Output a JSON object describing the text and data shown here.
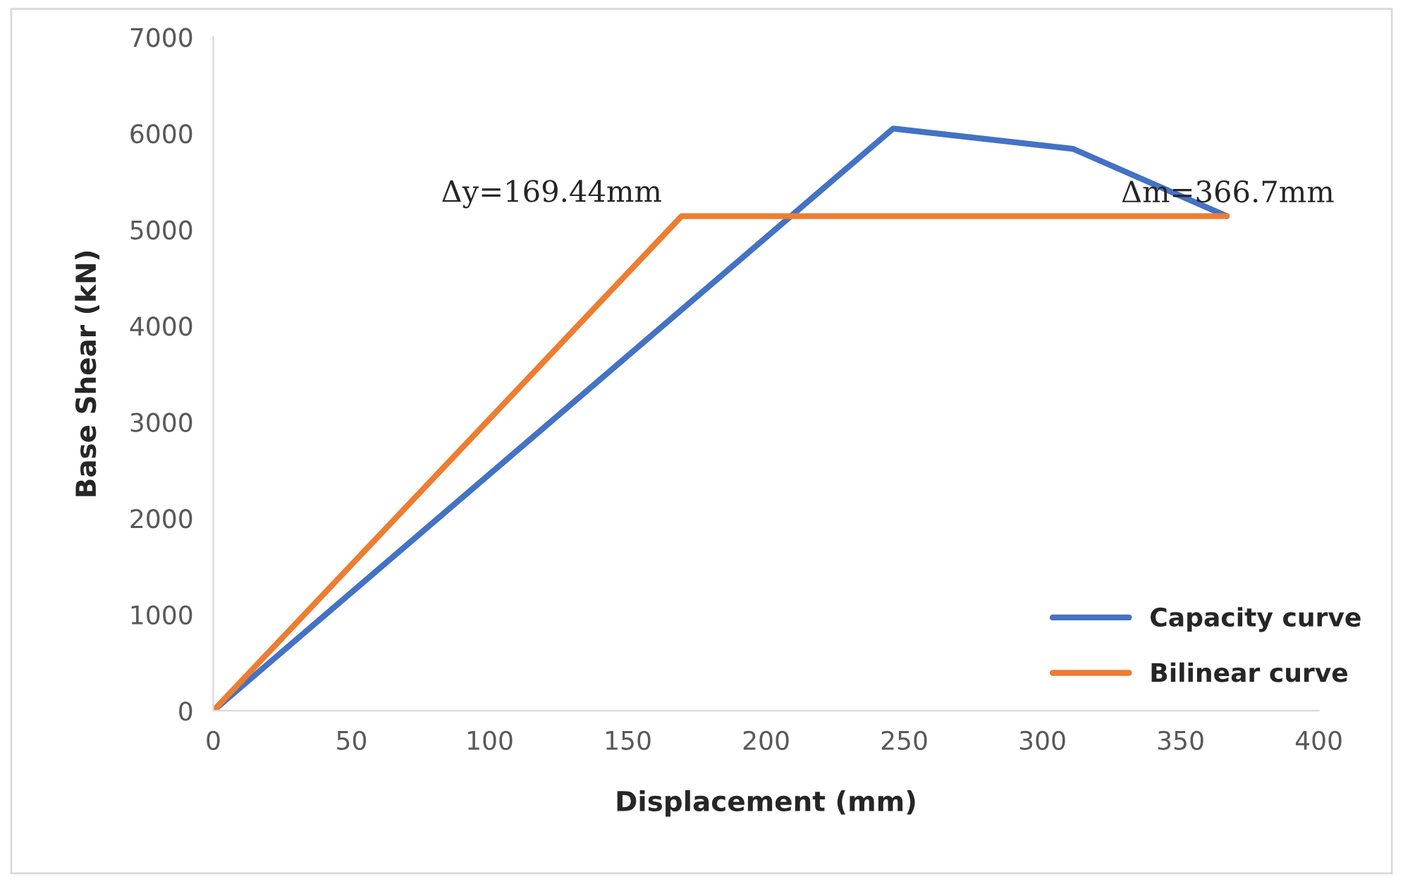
{
  "chart_data": {
    "type": "line",
    "xlabel": "Displacement (mm)",
    "ylabel": "Base Shear (kN)",
    "series": [
      {
        "name": "Capacity curve",
        "color": "#4472c4",
        "x": [
          0,
          246,
          311,
          366.7
        ],
        "values": [
          0,
          6050,
          5840,
          5140
        ]
      },
      {
        "name": "Bilinear curve",
        "color": "#ed7d31",
        "x": [
          0,
          169.44,
          366.7
        ],
        "values": [
          0,
          5140,
          5140
        ]
      }
    ],
    "annotations": [
      {
        "text": "Δy=169.44mm",
        "x": 169.44,
        "y": 5140
      },
      {
        "text": "Δm=366.7mm",
        "x": 366.7,
        "y": 5140
      }
    ],
    "xlim": [
      0,
      400
    ],
    "xticks": [
      0,
      50,
      100,
      150,
      200,
      250,
      300,
      350,
      400
    ],
    "ylim": [
      0,
      7000
    ],
    "yticks": [
      0,
      1000,
      2000,
      3000,
      4000,
      5000,
      6000,
      7000
    ],
    "grid": false,
    "legend": "bottom right",
    "marker": "none",
    "line_style": "solid"
  }
}
